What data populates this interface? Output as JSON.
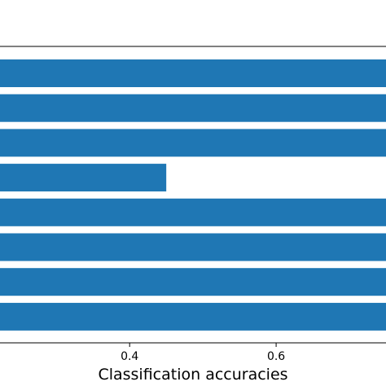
{
  "chart_data": {
    "type": "bar",
    "orientation": "horizontal",
    "categories": [
      "",
      "",
      "",
      "",
      "",
      "",
      "",
      ""
    ],
    "values": [
      0.75,
      0.75,
      0.75,
      0.45,
      0.75,
      0.75,
      0.75,
      0.75
    ],
    "xlabel": "Classification accuracies",
    "xlim": [
      0.223,
      0.75
    ],
    "xticks": [
      "0.4",
      "0.6"
    ],
    "grid": false,
    "bar_color": "#1f77b4"
  }
}
